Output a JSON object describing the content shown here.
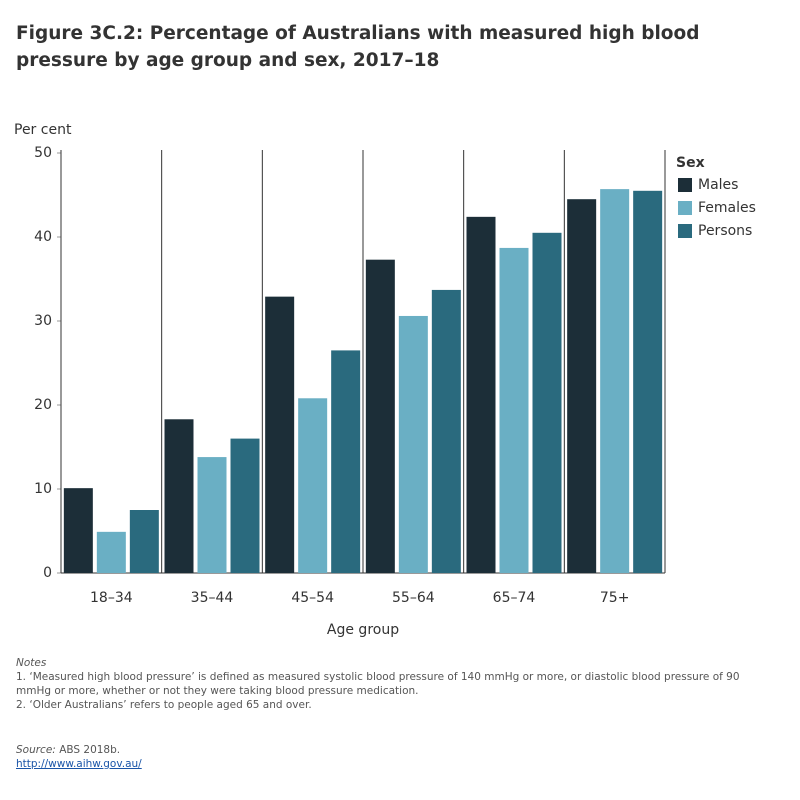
{
  "chart_data": {
    "type": "bar",
    "title": "Figure 3C.2: Percentage of Australians with measured high blood pressure by age group and sex, 2017–18",
    "y_label": "Per cent",
    "x_label": "Age group",
    "categories": [
      "18–34",
      "35–44",
      "45–54",
      "55–64",
      "65–74",
      "75+"
    ],
    "legend_title": "Sex",
    "series": [
      {
        "name": "Males",
        "color": "#1c2e38",
        "values": [
          10.1,
          18.3,
          32.9,
          37.3,
          42.4,
          44.5
        ]
      },
      {
        "name": "Females",
        "color": "#6aafc4",
        "values": [
          4.9,
          13.8,
          20.8,
          30.6,
          38.7,
          45.7
        ]
      },
      {
        "name": "Persons",
        "color": "#2a6a7e",
        "values": [
          7.5,
          16.0,
          26.5,
          33.7,
          40.5,
          45.5
        ]
      }
    ],
    "ylim": [
      0,
      50
    ],
    "yticks": [
      0,
      10,
      20,
      30,
      40,
      50
    ],
    "legend": "right"
  },
  "notes_heading": "Notes",
  "notes": [
    "1. ‘Measured high blood pressure’ is defined as measured systolic blood pressure of 140 mmHg or more, or diastolic blood pressure of 90 mmHg or more, whether or not they were taking blood pressure medication.",
    "2. ‘Older Australians’ refers to people aged 65 and over."
  ],
  "source_label": "Source:",
  "source": "ABS 2018b.",
  "url": "http://www.aihw.gov.au/"
}
